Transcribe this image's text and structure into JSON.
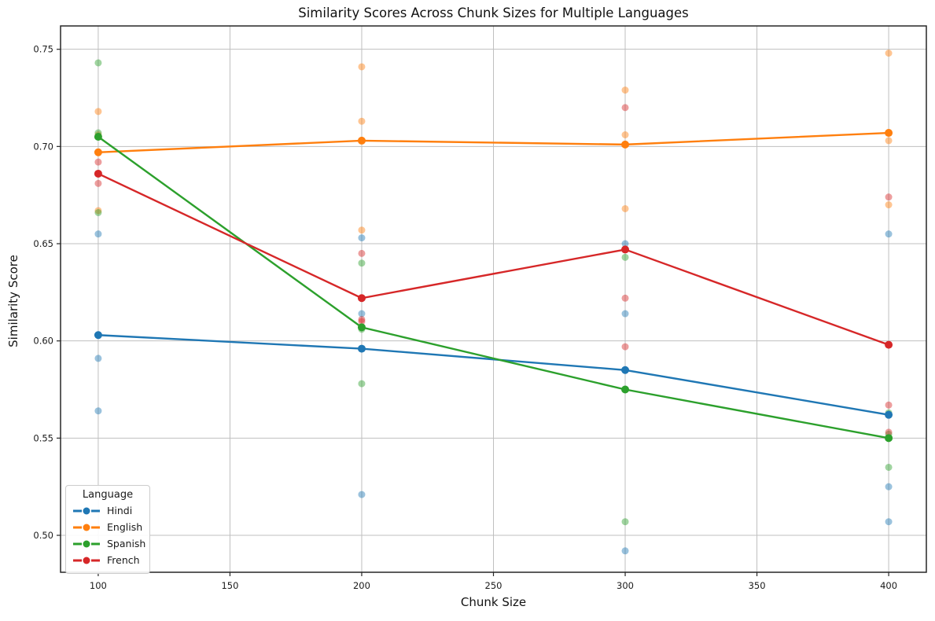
{
  "title": "Similarity Scores Across Chunk Sizes for Multiple Languages",
  "axes": {
    "xlabel": "Chunk Size",
    "ylabel": "Similarity Score",
    "x_ticks": [
      100,
      150,
      200,
      250,
      300,
      350,
      400
    ],
    "y_ticks": [
      0.5,
      0.55,
      0.6,
      0.65,
      0.7,
      0.75
    ],
    "xlim": [
      85.7,
      414.3
    ],
    "ylim": [
      0.481,
      0.762
    ],
    "grid": true,
    "grid_color": "#bfbfbf",
    "spine_color": "#262626"
  },
  "legend": {
    "title": "Language",
    "position": "lower-left",
    "items": [
      {
        "label": "Hindi",
        "color": "#1f77b4"
      },
      {
        "label": "English",
        "color": "#ff7f0e"
      },
      {
        "label": "Spanish",
        "color": "#2ca02c"
      },
      {
        "label": "French",
        "color": "#d62728"
      }
    ]
  },
  "chart_data": {
    "type": "line",
    "title": "Similarity Scores Across Chunk Sizes for Multiple Languages",
    "xlabel": "Chunk Size",
    "ylabel": "Similarity Score",
    "x": [
      100,
      200,
      300,
      400
    ],
    "legend_title": "Language",
    "series": [
      {
        "name": "Hindi",
        "color": "#1f77b4",
        "mean_values": [
          0.603,
          0.596,
          0.585,
          0.562
        ],
        "scatter_values": [
          [
            0.655,
            0.591,
            0.564
          ],
          [
            0.653,
            0.614,
            0.521
          ],
          [
            0.65,
            0.614,
            0.492
          ],
          [
            0.655,
            0.525,
            0.507
          ]
        ]
      },
      {
        "name": "English",
        "color": "#ff7f0e",
        "mean_values": [
          0.697,
          0.703,
          0.701,
          0.707
        ],
        "scatter_values": [
          [
            0.718,
            0.706,
            0.667
          ],
          [
            0.741,
            0.713,
            0.657
          ],
          [
            0.729,
            0.706,
            0.668
          ],
          [
            0.748,
            0.703,
            0.67
          ]
        ]
      },
      {
        "name": "Spanish",
        "color": "#2ca02c",
        "mean_values": [
          0.705,
          0.607,
          0.575,
          0.55
        ],
        "scatter_values": [
          [
            0.743,
            0.707,
            0.666
          ],
          [
            0.64,
            0.606,
            0.578
          ],
          [
            0.643,
            0.575,
            0.507
          ],
          [
            0.563,
            0.552,
            0.535
          ]
        ]
      },
      {
        "name": "French",
        "color": "#d62728",
        "mean_values": [
          0.686,
          0.622,
          0.647,
          0.598
        ],
        "scatter_values": [
          [
            0.692,
            0.686,
            0.681
          ],
          [
            0.645,
            0.611,
            0.61
          ],
          [
            0.72,
            0.622,
            0.597
          ],
          [
            0.674,
            0.567,
            0.553
          ]
        ]
      }
    ],
    "scatter_alpha": 0.45,
    "ylim": [
      0.481,
      0.762
    ],
    "xlim": [
      85.7,
      414.3
    ]
  }
}
